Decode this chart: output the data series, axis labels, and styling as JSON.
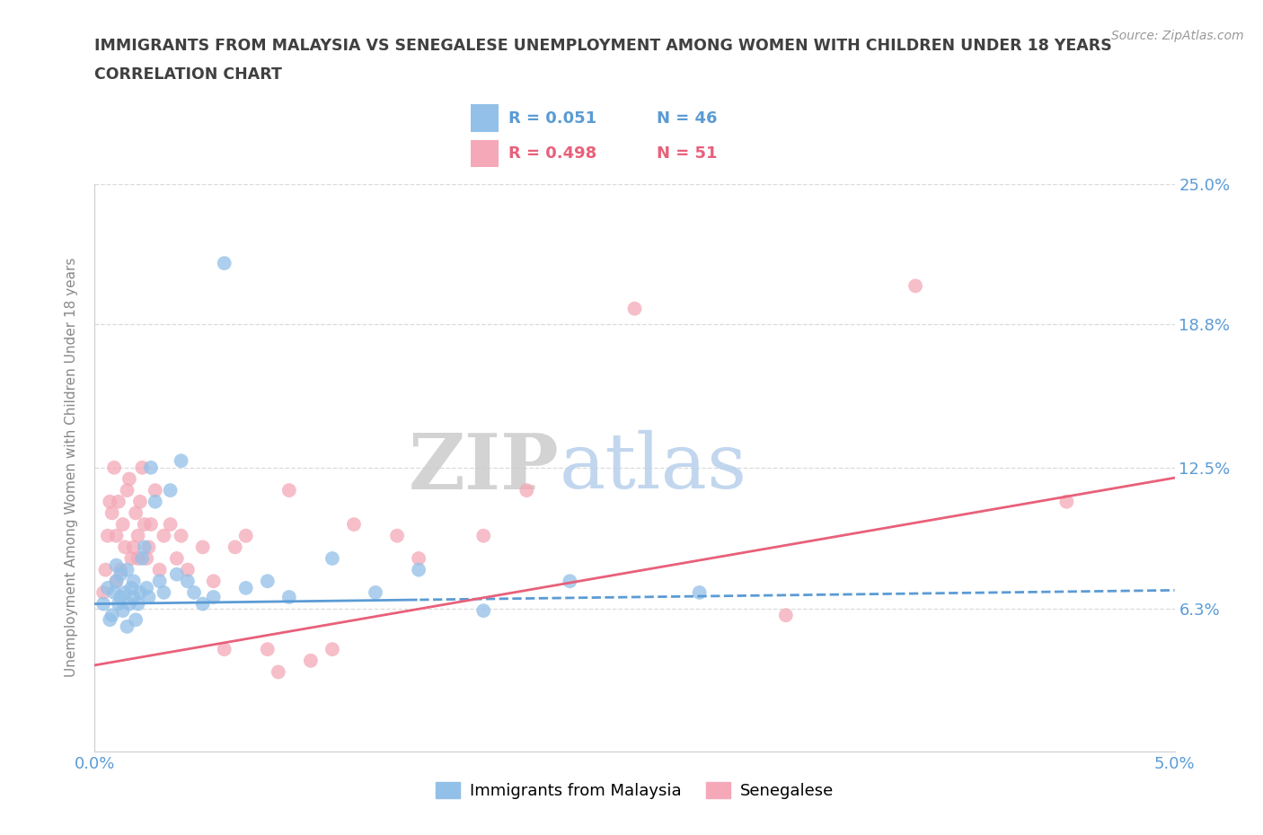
{
  "title": "IMMIGRANTS FROM MALAYSIA VS SENEGALESE UNEMPLOYMENT AMONG WOMEN WITH CHILDREN UNDER 18 YEARS",
  "subtitle": "CORRELATION CHART",
  "source": "Source: ZipAtlas.com",
  "ylabel": "Unemployment Among Women with Children Under 18 years",
  "xlim": [
    0.0,
    5.0
  ],
  "ylim": [
    0.0,
    25.0
  ],
  "x_tick_labels": [
    "0.0%",
    "5.0%"
  ],
  "y_tick_labels": [
    "6.3%",
    "12.5%",
    "18.8%",
    "25.0%"
  ],
  "y_tick_values": [
    6.3,
    12.5,
    18.8,
    25.0
  ],
  "blue_color": "#92C0E8",
  "pink_color": "#F4A8B8",
  "blue_line_color": "#5B9BD5",
  "pink_line_color": "#E8607A",
  "label1": "Immigrants from Malaysia",
  "label2": "Senegalese",
  "title_color": "#404040",
  "axis_label_color": "#5B9BD5",
  "blue_scatter_x": [
    0.04,
    0.06,
    0.07,
    0.08,
    0.09,
    0.1,
    0.1,
    0.11,
    0.12,
    0.12,
    0.13,
    0.14,
    0.15,
    0.15,
    0.16,
    0.17,
    0.18,
    0.18,
    0.19,
    0.2,
    0.21,
    0.22,
    0.23,
    0.24,
    0.25,
    0.26,
    0.28,
    0.3,
    0.32,
    0.35,
    0.38,
    0.4,
    0.43,
    0.46,
    0.5,
    0.55,
    0.6,
    0.7,
    0.8,
    0.9,
    1.1,
    1.3,
    1.5,
    1.8,
    2.2,
    2.8
  ],
  "blue_scatter_y": [
    6.5,
    7.2,
    5.8,
    6.0,
    7.0,
    7.5,
    8.2,
    6.5,
    6.8,
    7.8,
    6.2,
    7.0,
    5.5,
    8.0,
    6.5,
    7.2,
    6.8,
    7.5,
    5.8,
    6.5,
    7.0,
    8.5,
    9.0,
    7.2,
    6.8,
    12.5,
    11.0,
    7.5,
    7.0,
    11.5,
    7.8,
    12.8,
    7.5,
    7.0,
    6.5,
    6.8,
    21.5,
    7.2,
    7.5,
    6.8,
    8.5,
    7.0,
    8.0,
    6.2,
    7.5,
    7.0
  ],
  "pink_scatter_x": [
    0.04,
    0.05,
    0.06,
    0.07,
    0.08,
    0.09,
    0.1,
    0.1,
    0.11,
    0.12,
    0.13,
    0.14,
    0.15,
    0.16,
    0.17,
    0.18,
    0.19,
    0.2,
    0.2,
    0.21,
    0.22,
    0.23,
    0.24,
    0.25,
    0.26,
    0.28,
    0.3,
    0.32,
    0.35,
    0.38,
    0.4,
    0.43,
    0.5,
    0.55,
    0.6,
    0.7,
    0.85,
    1.0,
    1.2,
    1.5,
    1.8,
    2.0,
    2.5,
    3.2,
    3.8,
    4.5,
    0.65,
    0.8,
    0.9,
    1.1,
    1.4
  ],
  "pink_scatter_y": [
    7.0,
    8.0,
    9.5,
    11.0,
    10.5,
    12.5,
    7.5,
    9.5,
    11.0,
    8.0,
    10.0,
    9.0,
    11.5,
    12.0,
    8.5,
    9.0,
    10.5,
    8.5,
    9.5,
    11.0,
    12.5,
    10.0,
    8.5,
    9.0,
    10.0,
    11.5,
    8.0,
    9.5,
    10.0,
    8.5,
    9.5,
    8.0,
    9.0,
    7.5,
    4.5,
    9.5,
    3.5,
    4.0,
    10.0,
    8.5,
    9.5,
    11.5,
    19.5,
    6.0,
    20.5,
    11.0,
    9.0,
    4.5,
    11.5,
    4.5,
    9.5
  ],
  "blue_trend_slope": 0.12,
  "blue_trend_intercept": 6.5,
  "pink_trend_slope": 1.65,
  "pink_trend_intercept": 3.8,
  "blue_solid_end": 1.5,
  "grid_color": "#CCCCCC",
  "grid_style": "--",
  "grid_alpha": 0.7
}
